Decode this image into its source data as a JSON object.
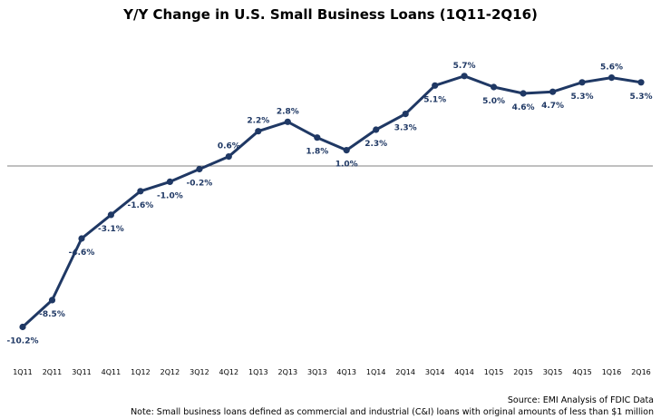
{
  "chart_data": {
    "type": "line",
    "title": "Y/Y Change in U.S. Small Business Loans (1Q11-2Q16)",
    "xlabel": "",
    "ylabel": "",
    "categories": [
      "1Q11",
      "2Q11",
      "3Q11",
      "4Q11",
      "1Q12",
      "2Q12",
      "3Q12",
      "4Q12",
      "1Q13",
      "2Q13",
      "3Q13",
      "4Q13",
      "1Q14",
      "2Q14",
      "3Q14",
      "4Q14",
      "1Q15",
      "2Q15",
      "3Q15",
      "4Q15",
      "1Q16",
      "2Q16"
    ],
    "series": [
      {
        "values": [
          -10.2,
          -8.5,
          -4.6,
          -3.1,
          -1.6,
          -1.0,
          -0.2,
          0.6,
          2.2,
          2.8,
          1.8,
          1.0,
          2.3,
          3.3,
          5.1,
          5.7,
          5.0,
          4.6,
          4.7,
          5.3,
          5.6,
          5.3
        ],
        "labels": [
          "-10.2%",
          "-8.5%",
          "-4.6%",
          "-3.1%",
          "-1.6%",
          "-1.0%",
          "-0.2%",
          "0.6%",
          "2.2%",
          "2.8%",
          "1.8%",
          "1.0%",
          "2.3%",
          "3.3%",
          "5.1%",
          "5.7%",
          "5.0%",
          "4.6%",
          "4.7%",
          "5.3%",
          "5.6%",
          "5.3%"
        ],
        "label_positions": [
          "below",
          "below",
          "below",
          "below",
          "below",
          "below",
          "below",
          "above",
          "above",
          "above",
          "below",
          "below",
          "below",
          "below",
          "below",
          "above",
          "below",
          "below",
          "below",
          "below",
          "above",
          "below"
        ]
      }
    ],
    "ylim": [
      -11,
      8
    ],
    "grid": false,
    "legend": "none",
    "zero_line": true,
    "colors": {
      "line": "#1f3864",
      "marker": "#1f3864",
      "label": "#1f3864",
      "zero_line": "#808080"
    }
  },
  "footnotes": {
    "source": "Source: EMI Analysis of FDIC Data",
    "note": "Note: Small business loans defined as commercial and industrial (C&I) loans with original amounts of less than $1 million"
  }
}
